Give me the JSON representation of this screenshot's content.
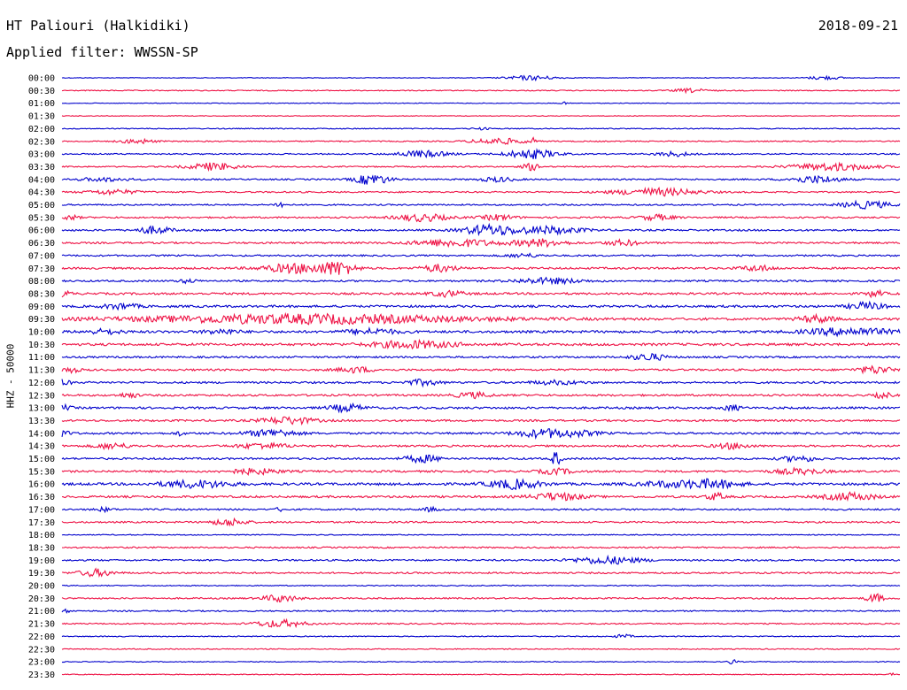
{
  "header": {
    "station": "HT Paliouri (Halkidiki)",
    "date": "2018-09-21",
    "filter_label": "Applied filter: WWSSN-SP"
  },
  "chart_data": {
    "type": "line",
    "ylabel": "HHZ - 50000",
    "x_axis": "none (continuous 30-minute traces)",
    "series_colors": [
      "#0000cc",
      "#ee1144"
    ],
    "categories": [
      "00:00",
      "00:30",
      "01:00",
      "01:30",
      "02:00",
      "02:30",
      "03:00",
      "03:30",
      "04:00",
      "04:30",
      "05:00",
      "05:30",
      "06:00",
      "06:30",
      "07:00",
      "07:30",
      "08:00",
      "08:30",
      "09:00",
      "09:30",
      "10:00",
      "10:30",
      "11:00",
      "11:30",
      "12:00",
      "12:30",
      "13:00",
      "13:30",
      "14:00",
      "14:30",
      "15:00",
      "15:30",
      "16:00",
      "16:30",
      "17:00",
      "17:30",
      "18:00",
      "18:30",
      "19:00",
      "19:30",
      "20:00",
      "20:30",
      "21:00",
      "21:30",
      "22:00",
      "22:30",
      "23:00",
      "23:30"
    ],
    "noise_level": [
      0.4,
      0.6,
      0.4,
      0.4,
      0.6,
      0.7,
      0.8,
      0.8,
      0.9,
      0.9,
      0.9,
      1.0,
      1.1,
      1.1,
      1.0,
      1.2,
      1.1,
      1.3,
      1.4,
      1.4,
      1.5,
      1.5,
      1.1,
      1.2,
      1.2,
      1.2,
      1.3,
      1.2,
      1.2,
      1.2,
      1.2,
      1.2,
      1.5,
      1.3,
      1.0,
      1.0,
      0.6,
      0.9,
      1.0,
      1.0,
      0.6,
      0.9,
      0.8,
      0.8,
      0.6,
      0.6,
      0.5,
      0.5
    ],
    "bursts": [
      [
        [
          0.56,
          2.5,
          0.03
        ],
        [
          0.91,
          2,
          0.02
        ]
      ],
      [
        [
          0.75,
          2,
          0.02
        ]
      ],
      [
        [
          0.6,
          1.2,
          0.005
        ]
      ],
      [],
      [
        [
          0.5,
          1.2,
          0.01
        ]
      ],
      [
        [
          0.09,
          2.5,
          0.02
        ],
        [
          0.52,
          3.5,
          0.03
        ],
        [
          0.56,
          4,
          0.005
        ]
      ],
      [
        [
          0.43,
          3.5,
          0.03
        ],
        [
          0.56,
          5,
          0.03
        ],
        [
          0.73,
          2.5,
          0.02
        ]
      ],
      [
        [
          0.18,
          4,
          0.03
        ],
        [
          0.56,
          4,
          0.01
        ],
        [
          0.92,
          4,
          0.05
        ]
      ],
      [
        [
          0.05,
          2,
          0.03
        ],
        [
          0.37,
          6,
          0.02
        ],
        [
          0.52,
          2.5,
          0.02
        ],
        [
          0.9,
          4,
          0.03
        ]
      ],
      [
        [
          0.06,
          2.5,
          0.03
        ],
        [
          0.71,
          4,
          0.05
        ]
      ],
      [
        [
          0.26,
          4,
          0.005
        ],
        [
          0.96,
          4,
          0.03
        ]
      ],
      [
        [
          0.01,
          2.5,
          0.01
        ],
        [
          0.43,
          4,
          0.03
        ],
        [
          0.52,
          3,
          0.02
        ],
        [
          0.71,
          3,
          0.02
        ]
      ],
      [
        [
          0.11,
          4,
          0.02
        ],
        [
          0.51,
          6,
          0.03
        ],
        [
          0.58,
          4,
          0.04
        ]
      ],
      [
        [
          0.47,
          4,
          0.05
        ],
        [
          0.57,
          4,
          0.03
        ],
        [
          0.67,
          3,
          0.02
        ]
      ],
      [
        [
          0.55,
          2,
          0.02
        ]
      ],
      [
        [
          0.28,
          5,
          0.04
        ],
        [
          0.33,
          7,
          0.02
        ],
        [
          0.45,
          4,
          0.02
        ],
        [
          0.83,
          3,
          0.02
        ]
      ],
      [
        [
          0.15,
          2,
          0.01
        ],
        [
          0.58,
          3,
          0.04
        ]
      ],
      [
        [
          0.0,
          3.5,
          0.01
        ],
        [
          0.46,
          3,
          0.02
        ],
        [
          0.97,
          3.5,
          0.01
        ]
      ],
      [
        [
          0.07,
          3,
          0.02
        ],
        [
          0.96,
          4,
          0.02
        ]
      ],
      [
        [
          0.29,
          5,
          0.2
        ],
        [
          0.9,
          4,
          0.02
        ]
      ],
      [
        [
          0.05,
          2.5,
          0.02
        ],
        [
          0.19,
          2.5,
          0.02
        ],
        [
          0.37,
          3,
          0.03
        ],
        [
          0.94,
          4,
          0.05
        ]
      ],
      [
        [
          0.42,
          4,
          0.05
        ]
      ],
      [
        [
          0.7,
          4,
          0.02
        ]
      ],
      [
        [
          0.01,
          3,
          0.01
        ],
        [
          0.35,
          3,
          0.02
        ],
        [
          0.97,
          4,
          0.02
        ]
      ],
      [
        [
          0.0,
          3,
          0.01
        ],
        [
          0.43,
          3,
          0.02
        ],
        [
          0.59,
          2,
          0.03
        ]
      ],
      [
        [
          0.08,
          3,
          0.01
        ],
        [
          0.49,
          3,
          0.02
        ],
        [
          0.98,
          3,
          0.01
        ]
      ],
      [
        [
          0.0,
          3,
          0.01
        ],
        [
          0.34,
          4,
          0.02
        ],
        [
          0.8,
          3,
          0.01
        ]
      ],
      [
        [
          0.27,
          4,
          0.03
        ]
      ],
      [
        [
          0.0,
          3,
          0.01
        ],
        [
          0.14,
          2.5,
          0.005
        ],
        [
          0.25,
          4,
          0.03
        ],
        [
          0.57,
          4,
          0.03
        ],
        [
          0.61,
          3,
          0.03
        ]
      ],
      [
        [
          0.06,
          3,
          0.02
        ],
        [
          0.24,
          3,
          0.03
        ],
        [
          0.8,
          3,
          0.02
        ]
      ],
      [
        [
          0.43,
          4,
          0.02
        ],
        [
          0.59,
          9,
          0.005
        ],
        [
          0.88,
          3,
          0.02
        ]
      ],
      [
        [
          0.23,
          3,
          0.03
        ],
        [
          0.59,
          3,
          0.02
        ],
        [
          0.88,
          3,
          0.03
        ]
      ],
      [
        [
          0.16,
          4,
          0.04
        ],
        [
          0.54,
          5,
          0.03
        ],
        [
          0.73,
          3,
          0.04
        ],
        [
          0.78,
          4,
          0.03
        ]
      ],
      [
        [
          0.59,
          4,
          0.03
        ],
        [
          0.78,
          4,
          0.01
        ],
        [
          0.94,
          4,
          0.03
        ]
      ],
      [
        [
          0.05,
          2,
          0.01
        ],
        [
          0.26,
          2,
          0.005
        ],
        [
          0.44,
          2,
          0.01
        ]
      ],
      [
        [
          0.2,
          4,
          0.02
        ]
      ],
      [],
      [],
      [
        [
          0.65,
          4,
          0.04
        ]
      ],
      [
        [
          0.04,
          4,
          0.02
        ]
      ],
      [],
      [
        [
          0.26,
          4,
          0.02
        ],
        [
          0.97,
          5,
          0.01
        ]
      ],
      [
        [
          0.0,
          2,
          0.01
        ]
      ],
      [
        [
          0.26,
          4,
          0.03
        ]
      ],
      [
        [
          0.67,
          2,
          0.01
        ]
      ],
      [],
      [
        [
          0.8,
          3,
          0.005
        ]
      ],
      [
        [
          0.99,
          3,
          0.002
        ]
      ]
    ]
  }
}
